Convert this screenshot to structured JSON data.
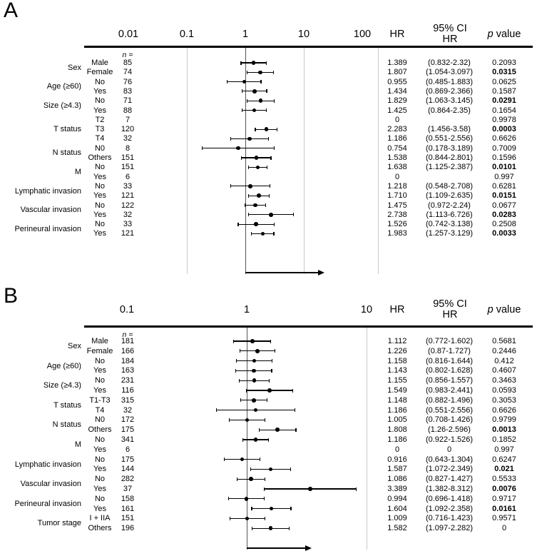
{
  "chart_data": [
    {
      "type": "forest",
      "panel": "A",
      "axis": {
        "scale": "log",
        "ticks": [
          0.01,
          0.1,
          1,
          10,
          100
        ],
        "tick_labels": [
          "0.01",
          "0.1",
          "1",
          "10",
          "100"
        ],
        "reference_line": 1,
        "xlim": [
          0.01,
          100
        ]
      },
      "columns": {
        "n_header": "n =",
        "hr_header": "HR",
        "ci_header_line1": "95% CI",
        "ci_header_line2": "HR",
        "p_header_italic": "p",
        "p_header_rest": " value"
      },
      "groups": [
        {
          "label": "Sex",
          "rows": [
            {
              "subgroup": "Male",
              "n": "85",
              "hr": 1.389,
              "ci_low": 0.832,
              "ci_high": 2.32,
              "hr_text": "1.389",
              "ci_text": "(0.832-2.32)",
              "p_text": "0.2093",
              "p_bold": false
            },
            {
              "subgroup": "Female",
              "n": "74",
              "hr": 1.807,
              "ci_low": 1.054,
              "ci_high": 3.097,
              "hr_text": "1.807",
              "ci_text": "(1.054-3.097)",
              "p_text": "0.0315",
              "p_bold": true
            }
          ]
        },
        {
          "label": "Age (≥60)",
          "rows": [
            {
              "subgroup": "No",
              "n": "76",
              "hr": 0.955,
              "ci_low": 0.485,
              "ci_high": 1.883,
              "hr_text": "0.955",
              "ci_text": "(0.485-1.883)",
              "p_text": "0.0625",
              "p_bold": false
            },
            {
              "subgroup": "Yes",
              "n": "83",
              "hr": 1.434,
              "ci_low": 0.869,
              "ci_high": 2.366,
              "hr_text": "1.434",
              "ci_text": "(0.869-2.366)",
              "p_text": "0.1587",
              "p_bold": false
            }
          ]
        },
        {
          "label": "Size (≥4.3)",
          "rows": [
            {
              "subgroup": "No",
              "n": "71",
              "hr": 1.829,
              "ci_low": 1.063,
              "ci_high": 3.145,
              "hr_text": "1.829",
              "ci_text": "(1.063-3.145)",
              "p_text": "0.0291",
              "p_bold": true
            },
            {
              "subgroup": "Yes",
              "n": "88",
              "hr": 1.425,
              "ci_low": 0.864,
              "ci_high": 2.35,
              "hr_text": "1.425",
              "ci_text": "(0.864-2.35)",
              "p_text": "0.1654",
              "p_bold": false
            }
          ]
        },
        {
          "label": "T status",
          "rows": [
            {
              "subgroup": "T2",
              "n": "7",
              "hr": 0,
              "ci_low": null,
              "ci_high": null,
              "hr_text": "0",
              "ci_text": "",
              "p_text": "0.9978",
              "p_bold": false
            },
            {
              "subgroup": "T3",
              "n": "120",
              "hr": 2.283,
              "ci_low": 1.456,
              "ci_high": 3.58,
              "hr_text": "2.283",
              "ci_text": "(1.456-3.58)",
              "p_text": "0.0003",
              "p_bold": true
            },
            {
              "subgroup": "T4",
              "n": "32",
              "hr": 1.186,
              "ci_low": 0.551,
              "ci_high": 2.556,
              "hr_text": "1.186",
              "ci_text": "(0.551-2.556)",
              "p_text": "0.6626",
              "p_bold": false
            }
          ]
        },
        {
          "label": "N status",
          "rows": [
            {
              "subgroup": "N0",
              "n": "8",
              "hr": 0.754,
              "ci_low": 0.178,
              "ci_high": 3.189,
              "hr_text": "0.754",
              "ci_text": "(0.178-3.189)",
              "p_text": "0.7009",
              "p_bold": false
            },
            {
              "subgroup": "Others",
              "n": "151",
              "hr": 1.538,
              "ci_low": 0.844,
              "ci_high": 2.801,
              "hr_text": "1.538",
              "ci_text": "(0.844-2.801)",
              "p_text": "0.1596",
              "p_bold": false
            }
          ]
        },
        {
          "label": "M",
          "rows": [
            {
              "subgroup": "No",
              "n": "151",
              "hr": 1.638,
              "ci_low": 1.125,
              "ci_high": 2.387,
              "hr_text": "1.638",
              "ci_text": "(1.125-2.387)",
              "p_text": "0.0101",
              "p_bold": true
            },
            {
              "subgroup": "Yes",
              "n": "6",
              "hr": 0,
              "ci_low": null,
              "ci_high": null,
              "hr_text": "0",
              "ci_text": "",
              "p_text": "0.997",
              "p_bold": false
            }
          ]
        },
        {
          "label": "Lymphatic invasion",
          "rows": [
            {
              "subgroup": "No",
              "n": "33",
              "hr": 1.218,
              "ci_low": 0.548,
              "ci_high": 2.708,
              "hr_text": "1.218",
              "ci_text": "(0.548-2.708)",
              "p_text": "0.6281",
              "p_bold": false
            },
            {
              "subgroup": "Yes",
              "n": "121",
              "hr": 1.71,
              "ci_low": 1.109,
              "ci_high": 2.635,
              "hr_text": "1.710",
              "ci_text": "(1.109-2.635)",
              "p_text": "0.0151",
              "p_bold": true
            }
          ]
        },
        {
          "label": "Vascular invasion",
          "rows": [
            {
              "subgroup": "No",
              "n": "122",
              "hr": 1.475,
              "ci_low": 0.972,
              "ci_high": 2.24,
              "hr_text": "1.475",
              "ci_text": "(0.972-2.24)",
              "p_text": "0.0677",
              "p_bold": false
            },
            {
              "subgroup": "Yes",
              "n": "32",
              "hr": 2.738,
              "ci_low": 1.113,
              "ci_high": 6.726,
              "hr_text": "2.738",
              "ci_text": "(1.113-6.726)",
              "p_text": "0.0283",
              "p_bold": true
            }
          ]
        },
        {
          "label": "Perineural invasion",
          "rows": [
            {
              "subgroup": "No",
              "n": "33",
              "hr": 1.526,
              "ci_low": 0.742,
              "ci_high": 3.138,
              "hr_text": "1.526",
              "ci_text": "(0.742-3.138)",
              "p_text": "0.2508",
              "p_bold": false
            },
            {
              "subgroup": "Yes",
              "n": "121",
              "hr": 1.983,
              "ci_low": 1.257,
              "ci_high": 3.129,
              "hr_text": "1.983",
              "ci_text": "(1.257-3.129)",
              "p_text": "0.0033",
              "p_bold": true
            }
          ]
        }
      ]
    },
    {
      "type": "forest",
      "panel": "B",
      "axis": {
        "scale": "log",
        "ticks": [
          0.1,
          1,
          10
        ],
        "tick_labels": [
          "0.1",
          "1",
          "10"
        ],
        "reference_line": 1,
        "xlim": [
          0.1,
          10
        ]
      },
      "columns": {
        "n_header": "n =",
        "hr_header": "HR",
        "ci_header_line1": "95% CI",
        "ci_header_line2": "HR",
        "p_header_italic": "p",
        "p_header_rest": " value"
      },
      "groups": [
        {
          "label": "Sex",
          "rows": [
            {
              "subgroup": "Male",
              "n": "181",
              "hr": 1.112,
              "ci_low": 0.772,
              "ci_high": 1.602,
              "hr_text": "1.112",
              "ci_text": "(0.772-1.602)",
              "p_text": "0.5681",
              "p_bold": false
            },
            {
              "subgroup": "Female",
              "n": "166",
              "hr": 1.226,
              "ci_low": 0.87,
              "ci_high": 1.727,
              "hr_text": "1.226",
              "ci_text": "(0.87-1.727)",
              "p_text": "0.2446",
              "p_bold": false
            }
          ]
        },
        {
          "label": "Age (≥60)",
          "rows": [
            {
              "subgroup": "No",
              "n": "184",
              "hr": 1.158,
              "ci_low": 0.816,
              "ci_high": 1.644,
              "hr_text": "1.158",
              "ci_text": "(0.816-1.644)",
              "p_text": "0.412",
              "p_bold": false
            },
            {
              "subgroup": "Yes",
              "n": "163",
              "hr": 1.143,
              "ci_low": 0.802,
              "ci_high": 1.628,
              "hr_text": "1.143",
              "ci_text": "(0.802-1.628)",
              "p_text": "0.4607",
              "p_bold": false
            }
          ]
        },
        {
          "label": "Size (≥4.3)",
          "rows": [
            {
              "subgroup": "No",
              "n": "231",
              "hr": 1.155,
              "ci_low": 0.856,
              "ci_high": 1.557,
              "hr_text": "1.155",
              "ci_text": "(0.856-1.557)",
              "p_text": "0.3463",
              "p_bold": false
            },
            {
              "subgroup": "Yes",
              "n": "116",
              "hr": 1.549,
              "ci_low": 0.983,
              "ci_high": 2.441,
              "hr_text": "1.549",
              "ci_text": "(0.983-2.441)",
              "p_text": "0.0593",
              "p_bold": false
            }
          ]
        },
        {
          "label": "T status",
          "rows": [
            {
              "subgroup": "T1-T3",
              "n": "315",
              "hr": 1.148,
              "ci_low": 0.882,
              "ci_high": 1.496,
              "hr_text": "1.148",
              "ci_text": "(0.882-1.496)",
              "p_text": "0.3053",
              "p_bold": false
            },
            {
              "subgroup": "T4",
              "n": "32",
              "hr": 1.186,
              "ci_low": 0.551,
              "ci_high": 2.556,
              "hr_text": "1.186",
              "ci_text": "(0.551-2.556)",
              "p_text": "0.6626",
              "p_bold": false
            }
          ]
        },
        {
          "label": "N status",
          "rows": [
            {
              "subgroup": "N0",
              "n": "172",
              "hr": 1.005,
              "ci_low": 0.708,
              "ci_high": 1.426,
              "hr_text": "1.005",
              "ci_text": "(0.708-1.426)",
              "p_text": "0.9799",
              "p_bold": false
            },
            {
              "subgroup": "Others",
              "n": "175",
              "hr": 1.808,
              "ci_low": 1.26,
              "ci_high": 2.596,
              "hr_text": "1.808",
              "ci_text": "(1.26-2.596)",
              "p_text": "0.0013",
              "p_bold": true
            }
          ]
        },
        {
          "label": "M",
          "rows": [
            {
              "subgroup": "No",
              "n": "341",
              "hr": 1.186,
              "ci_low": 0.922,
              "ci_high": 1.526,
              "hr_text": "1.186",
              "ci_text": "(0.922-1.526)",
              "p_text": "0.1852",
              "p_bold": false
            },
            {
              "subgroup": "Yes",
              "n": "6",
              "hr": 0,
              "ci_low": null,
              "ci_high": null,
              "hr_text": "0",
              "ci_text": "0",
              "p_text": "0.997",
              "p_bold": false
            }
          ]
        },
        {
          "label": "Lymphatic invasion",
          "rows": [
            {
              "subgroup": "No",
              "n": "175",
              "hr": 0.916,
              "ci_low": 0.643,
              "ci_high": 1.304,
              "hr_text": "0.916",
              "ci_text": "(0.643-1.304)",
              "p_text": "0.6247",
              "p_bold": false
            },
            {
              "subgroup": "Yes",
              "n": "144",
              "hr": 1.587,
              "ci_low": 1.072,
              "ci_high": 2.349,
              "hr_text": "1.587",
              "ci_text": "(1.072-2.349)",
              "p_text": "0.021",
              "p_bold": true
            }
          ]
        },
        {
          "label": "Vascular invasion",
          "rows": [
            {
              "subgroup": "No",
              "n": "282",
              "hr": 1.086,
              "ci_low": 0.827,
              "ci_high": 1.427,
              "hr_text": "1.086",
              "ci_text": "(0.827-1.427)",
              "p_text": "0.5533",
              "p_bold": false
            },
            {
              "subgroup": "Yes",
              "n": "37",
              "hr": 3.389,
              "ci_low": 1.382,
              "ci_high": 8.312,
              "hr_text": "3.389",
              "ci_text": "(1.382-8.312)",
              "p_text": "0.0076",
              "p_bold": true
            }
          ]
        },
        {
          "label": "Perineural invasion",
          "rows": [
            {
              "subgroup": "No",
              "n": "158",
              "hr": 0.994,
              "ci_low": 0.696,
              "ci_high": 1.418,
              "hr_text": "0.994",
              "ci_text": "(0.696-1.418)",
              "p_text": "0.9717",
              "p_bold": false
            },
            {
              "subgroup": "Yes",
              "n": "161",
              "hr": 1.604,
              "ci_low": 1.092,
              "ci_high": 2.358,
              "hr_text": "1.604",
              "ci_text": "(1.092-2.358)",
              "p_text": "0.0161",
              "p_bold": true
            }
          ]
        },
        {
          "label": "Tumor stage",
          "rows": [
            {
              "subgroup": "I + IIA",
              "n": "151",
              "hr": 1.009,
              "ci_low": 0.716,
              "ci_high": 1.423,
              "hr_text": "1.009",
              "ci_text": "(0.716-1.423)",
              "p_text": "0.9571",
              "p_bold": false
            },
            {
              "subgroup": "Others",
              "n": "196",
              "hr": 1.582,
              "ci_low": 1.097,
              "ci_high": 2.282,
              "hr_text": "1.582",
              "ci_text": "(1.097-2.282)",
              "p_text": "0",
              "p_bold": false
            }
          ]
        }
      ]
    }
  ]
}
